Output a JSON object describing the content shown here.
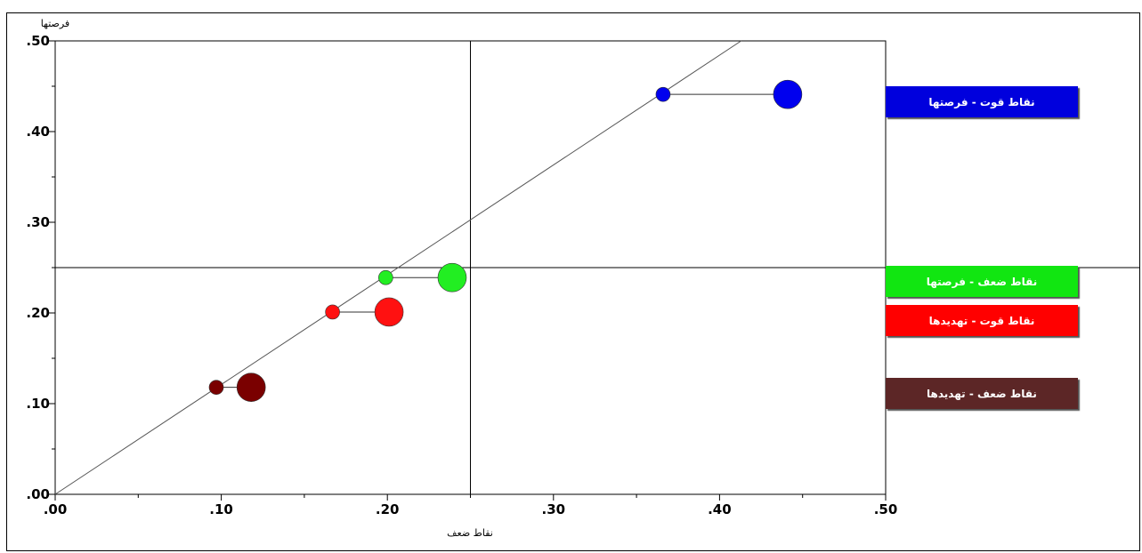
{
  "chart_data": {
    "type": "scatter",
    "xlabel": "نقاط ضعف",
    "ylabel": "فرصتها",
    "xlim": [
      0,
      0.5
    ],
    "ylim": [
      0,
      0.5
    ],
    "x_ticks": [
      ".00",
      ".10",
      ".20",
      ".30",
      ".40",
      ".50"
    ],
    "y_ticks": [
      ".00",
      ".10",
      ".20",
      ".30",
      ".40",
      ".50"
    ],
    "reference_lines": {
      "vertical_x": 0.25,
      "horizontal_y": 0.25,
      "diagonal": "y = x"
    },
    "series": [
      {
        "name": "نقاط قوت - فرصتها",
        "color": "#0000ee",
        "small": [
          0.366,
          0.441
        ],
        "large": [
          0.441,
          0.441
        ]
      },
      {
        "name": "نقاط ضعف - فرصتها",
        "color": "#22ee22",
        "small": [
          0.199,
          0.239
        ],
        "large": [
          0.239,
          0.239
        ]
      },
      {
        "name": "نقاط قوت - تهدیدها",
        "color": "#ff1111",
        "small": [
          0.167,
          0.201
        ],
        "large": [
          0.201,
          0.201
        ]
      },
      {
        "name": "نقاط ضعف - تهدیدها",
        "color": "#7a0000",
        "small": [
          0.097,
          0.118
        ],
        "large": [
          0.118,
          0.118
        ]
      }
    ],
    "legend_position": "right"
  },
  "legend_colors": [
    "#0000dd",
    "#11e611",
    "#ff0000",
    "#5c2626"
  ]
}
